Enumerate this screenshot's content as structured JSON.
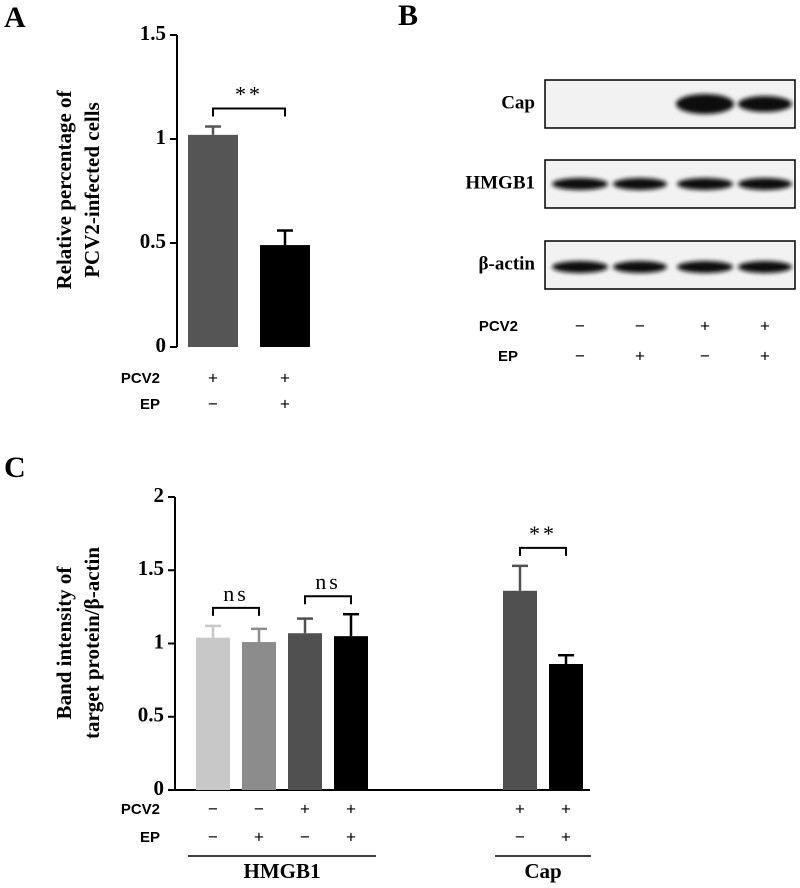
{
  "chart_data": [
    {
      "type": "bar",
      "panel": "A",
      "ylabel": [
        "Relative percentage of",
        "PCV2-infected cells"
      ],
      "ylim": [
        0,
        1.5
      ],
      "yticks": [
        0,
        0.5,
        1,
        1.5
      ],
      "conditions": [
        "PCV2",
        "EP"
      ],
      "groups": [
        {
          "values": [
            1.02,
            0.49
          ],
          "errors": [
            0.04,
            0.07
          ],
          "colors": [
            "#555555",
            "#000000"
          ],
          "signs": [
            [
              "+",
              "+"
            ],
            [
              "−",
              "+"
            ]
          ],
          "annotations": [
            "**"
          ]
        }
      ]
    },
    {
      "type": "bar",
      "panel": "C",
      "ylabel": [
        "Band intensity of",
        "target protein/β-actin"
      ],
      "ylim": [
        0,
        2
      ],
      "yticks": [
        0,
        0.5,
        1,
        1.5,
        2
      ],
      "conditions": [
        "PCV2",
        "EP"
      ],
      "groups": [
        {
          "name": "HMGB1",
          "values": [
            1.04,
            1.01,
            1.07,
            1.05
          ],
          "errors": [
            0.08,
            0.09,
            0.1,
            0.15
          ],
          "colors": [
            "#c8c8c8",
            "#8c8c8c",
            "#505050",
            "#000000"
          ],
          "signs": [
            [
              "−",
              "−",
              "+",
              "+"
            ],
            [
              "−",
              "+",
              "−",
              "+"
            ]
          ],
          "annotations": [
            "ns",
            "ns"
          ]
        },
        {
          "name": "Cap",
          "values": [
            1.36,
            0.86
          ],
          "errors": [
            0.17,
            0.06
          ],
          "colors": [
            "#505050",
            "#000000"
          ],
          "signs": [
            [
              "+",
              "+"
            ],
            [
              "−",
              "+"
            ]
          ],
          "annotations": [
            "**"
          ]
        }
      ]
    }
  ],
  "blot": {
    "panel": "B",
    "rows": [
      "Cap",
      "HMGB1",
      "β-actin"
    ],
    "conditions": [
      "PCV2",
      "EP"
    ],
    "signs": [
      [
        "−",
        "−",
        "+",
        "+"
      ],
      [
        "−",
        "+",
        "−",
        "+"
      ]
    ]
  }
}
